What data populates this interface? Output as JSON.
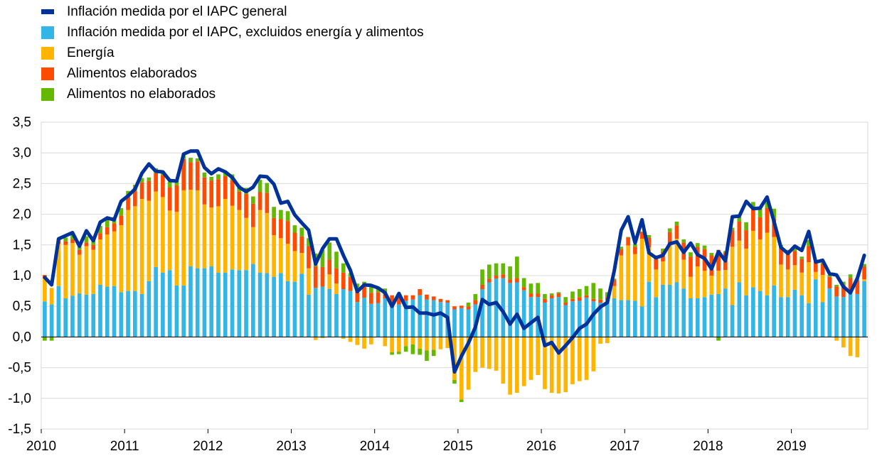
{
  "chart_data": {
    "type": "bar",
    "title": "",
    "xlabel": "",
    "ylabel": "",
    "ylim": [
      -1.5,
      3.5
    ],
    "yticks": [
      "3,5",
      "3,0",
      "2,5",
      "2,0",
      "1,5",
      "1,0",
      "0,5",
      "0,0",
      "-0,5",
      "-1,0",
      "-1,5"
    ],
    "ytick_values": [
      3.5,
      3.0,
      2.5,
      2.0,
      1.5,
      1.0,
      0.5,
      0.0,
      -0.5,
      -1.0,
      -1.5
    ],
    "xticks": [
      "2010",
      "2011",
      "2012",
      "2013",
      "2014",
      "2015",
      "2016",
      "2017",
      "2018",
      "2019"
    ],
    "start": "2010-01",
    "frequency": "monthly",
    "grid": true,
    "legend_position": "top-left",
    "legend": [
      {
        "label": "Inflación medida por el IAPC general",
        "color": "#003299",
        "kind": "line"
      },
      {
        "label": "Inflación medida por el IAPC, excluidos energía y alimentos",
        "color": "#33B5E5",
        "kind": "bar"
      },
      {
        "label": "Energía",
        "color": "#FFB400",
        "kind": "bar"
      },
      {
        "label": "Alimentos elaborados",
        "color": "#FF4B00",
        "kind": "bar"
      },
      {
        "label": "Alimentos no elaborados",
        "color": "#65B800",
        "kind": "bar"
      }
    ],
    "series": [
      {
        "name": "Inflación medida por el IAPC general",
        "type": "line",
        "color": "#003299",
        "values": [
          0.97,
          0.85,
          1.6,
          1.65,
          1.7,
          1.48,
          1.73,
          1.57,
          1.87,
          1.94,
          1.91,
          2.21,
          2.3,
          2.41,
          2.67,
          2.82,
          2.7,
          2.69,
          2.55,
          2.54,
          2.98,
          3.03,
          3.03,
          2.76,
          2.66,
          2.74,
          2.69,
          2.6,
          2.44,
          2.37,
          2.44,
          2.62,
          2.61,
          2.49,
          2.18,
          2.21,
          1.99,
          1.86,
          1.74,
          1.19,
          1.44,
          1.6,
          1.6,
          1.33,
          1.09,
          0.74,
          0.85,
          0.84,
          0.8,
          0.72,
          0.5,
          0.71,
          0.48,
          0.49,
          0.39,
          0.39,
          0.36,
          0.39,
          0.32,
          -0.57,
          -0.31,
          -0.1,
          0.16,
          0.61,
          0.53,
          0.56,
          0.41,
          0.21,
          0.37,
          0.14,
          0.23,
          0.32,
          -0.14,
          -0.09,
          -0.26,
          -0.14,
          -0.01,
          0.14,
          0.21,
          0.37,
          0.49,
          0.56,
          1.08,
          1.74,
          1.96,
          1.53,
          1.91,
          1.37,
          1.29,
          1.33,
          1.52,
          1.55,
          1.38,
          1.53,
          1.34,
          1.28,
          1.11,
          1.39,
          1.24,
          1.96,
          1.97,
          2.21,
          2.09,
          2.1,
          2.28,
          1.88,
          1.46,
          1.36,
          1.48,
          1.41,
          1.72,
          1.22,
          1.25,
          1.03,
          1.01,
          0.82,
          0.72,
          0.96,
          1.33
        ]
      },
      {
        "name": "Inflación medida por el IAPC, excluidos energía y alimentos",
        "color": "#33B5E5",
        "values": [
          0.58,
          0.53,
          0.83,
          0.63,
          0.67,
          0.71,
          0.69,
          0.7,
          0.85,
          0.82,
          0.83,
          0.73,
          0.75,
          0.75,
          0.7,
          0.91,
          1.14,
          1.05,
          1.09,
          0.84,
          0.84,
          1.15,
          1.12,
          1.12,
          1.15,
          1.05,
          1.05,
          1.1,
          1.09,
          1.09,
          1.19,
          1.05,
          1.04,
          0.98,
          1.04,
          0.91,
          0.9,
          1.03,
          0.69,
          0.8,
          0.82,
          0.78,
          0.7,
          0.78,
          0.75,
          0.57,
          0.64,
          0.54,
          0.55,
          0.63,
          0.53,
          0.53,
          0.59,
          0.61,
          0.68,
          0.61,
          0.6,
          0.57,
          0.56,
          0.45,
          0.47,
          0.45,
          0.53,
          0.78,
          0.89,
          0.95,
          0.96,
          0.88,
          0.89,
          0.76,
          0.65,
          0.65,
          0.56,
          0.63,
          0.65,
          0.52,
          0.58,
          0.59,
          0.64,
          0.58,
          0.56,
          0.6,
          0.63,
          0.6,
          0.6,
          0.59,
          0.5,
          0.9,
          0.65,
          0.85,
          0.85,
          0.89,
          0.79,
          0.63,
          0.63,
          0.65,
          0.69,
          0.7,
          0.79,
          0.52,
          0.89,
          0.68,
          0.81,
          0.75,
          0.68,
          0.84,
          0.65,
          0.65,
          0.77,
          0.68,
          0.55,
          0.94,
          0.57,
          0.79,
          0.66,
          0.65,
          0.76,
          0.7,
          0.91,
          0.93
        ]
      },
      {
        "name": "Energía",
        "color": "#FFB400",
        "values": [
          0.37,
          0.27,
          0.69,
          0.87,
          0.86,
          0.63,
          0.79,
          0.72,
          0.74,
          0.85,
          0.89,
          1.09,
          1.32,
          1.38,
          1.55,
          1.31,
          1.23,
          1.23,
          0.97,
          1.2,
          1.55,
          1.25,
          1.27,
          1.04,
          0.96,
          1.08,
          1.2,
          1.04,
          0.98,
          0.85,
          0.6,
          1.02,
          0.98,
          0.68,
          0.57,
          0.61,
          0.5,
          0.34,
          0.43,
          -0.05,
          -0.02,
          0.24,
          0.17,
          -0.03,
          -0.08,
          -0.13,
          -0.19,
          -0.12,
          0.0,
          -0.15,
          -0.25,
          -0.24,
          -0.15,
          -0.12,
          -0.19,
          -0.22,
          -0.21,
          -0.2,
          -0.18,
          -0.7,
          -1.02,
          -0.86,
          -0.57,
          -0.5,
          -0.52,
          -0.55,
          -0.76,
          -0.94,
          -0.91,
          -0.8,
          -0.7,
          -0.62,
          -0.85,
          -0.91,
          -0.92,
          -0.9,
          -0.77,
          -0.72,
          -0.7,
          -0.56,
          -0.11,
          -0.1,
          0.2,
          0.73,
          0.89,
          0.76,
          1.1,
          0.56,
          0.45,
          0.38,
          0.64,
          0.71,
          0.47,
          0.35,
          0.52,
          0.43,
          0.31,
          0.38,
          0.3,
          0.95,
          0.68,
          0.76,
          0.92,
          0.84,
          1.02,
          0.79,
          0.53,
          0.45,
          0.4,
          0.37,
          0.67,
          0.12,
          0.44,
          0.0,
          -0.06,
          -0.17,
          -0.31,
          -0.33,
          0.03,
          0.13
        ]
      },
      {
        "name": "Alimentos elaborados",
        "color": "#FF4B00",
        "values": [
          0.06,
          0.0,
          0.05,
          0.06,
          0.06,
          0.08,
          0.06,
          0.08,
          0.1,
          0.12,
          0.13,
          0.16,
          0.21,
          0.25,
          0.27,
          0.32,
          0.3,
          0.36,
          0.38,
          0.43,
          0.51,
          0.45,
          0.47,
          0.44,
          0.44,
          0.44,
          0.37,
          0.41,
          0.3,
          0.39,
          0.38,
          0.29,
          0.33,
          0.28,
          0.31,
          0.37,
          0.3,
          0.27,
          0.36,
          0.35,
          0.32,
          0.24,
          0.25,
          0.27,
          0.23,
          0.2,
          0.18,
          0.18,
          0.18,
          0.1,
          0.15,
          0.13,
          0.09,
          0.07,
          0.1,
          0.08,
          0.06,
          0.05,
          0.04,
          0.05,
          0.04,
          0.05,
          0.07,
          0.07,
          0.06,
          0.05,
          0.06,
          0.06,
          0.07,
          0.05,
          0.06,
          0.06,
          0.06,
          0.05,
          0.06,
          0.04,
          0.04,
          0.06,
          0.04,
          0.04,
          0.05,
          0.05,
          0.1,
          0.1,
          0.13,
          0.12,
          0.11,
          0.16,
          0.18,
          0.16,
          0.22,
          0.22,
          0.28,
          0.33,
          0.32,
          0.35,
          0.33,
          0.34,
          0.29,
          0.27,
          0.31,
          0.3,
          0.37,
          0.36,
          0.4,
          0.3,
          0.28,
          0.27,
          0.23,
          0.22,
          0.26,
          0.19,
          0.18,
          0.19,
          0.16,
          0.2,
          0.2,
          0.22,
          0.21,
          0.22
        ]
      },
      {
        "name": "Alimentos no elaborados",
        "color": "#65B800",
        "values": [
          -0.06,
          -0.06,
          0.03,
          0.06,
          0.08,
          0.06,
          0.1,
          0.1,
          0.12,
          0.13,
          0.1,
          0.12,
          0.1,
          0.1,
          0.07,
          0.06,
          0.08,
          0.06,
          0.09,
          0.07,
          0.09,
          0.07,
          0.05,
          0.08,
          0.06,
          0.08,
          0.06,
          0.1,
          0.1,
          0.1,
          0.12,
          0.2,
          0.16,
          0.18,
          0.15,
          0.16,
          0.12,
          0.14,
          0.13,
          0.21,
          0.28,
          0.28,
          0.27,
          0.15,
          0.06,
          0.1,
          0.08,
          0.12,
          0.07,
          0.06,
          -0.04,
          -0.04,
          -0.09,
          -0.16,
          -0.1,
          -0.17,
          -0.1,
          0.0,
          0.0,
          -0.06,
          -0.04,
          0.06,
          0.1,
          0.25,
          0.23,
          0.2,
          0.18,
          0.21,
          0.35,
          0.15,
          0.16,
          0.17,
          0.08,
          0.03,
          0.02,
          0.09,
          0.12,
          0.13,
          0.15,
          0.26,
          0.18,
          0.08,
          0.02,
          0.04,
          0.01,
          0.04,
          0.01,
          0.04,
          0.05,
          0.05,
          0.06,
          0.06,
          0.05,
          0.07,
          0.06,
          0.06,
          0.04,
          -0.06,
          0.02,
          0.04,
          0.08,
          0.13,
          0.1,
          0.14,
          0.1,
          0.16,
          0.04,
          0.05,
          0.04,
          0.04,
          0.1,
          0.01,
          0.02,
          0.03,
          0.03,
          0.05,
          0.06,
          0.02,
          0.04,
          0.05
        ]
      }
    ]
  }
}
